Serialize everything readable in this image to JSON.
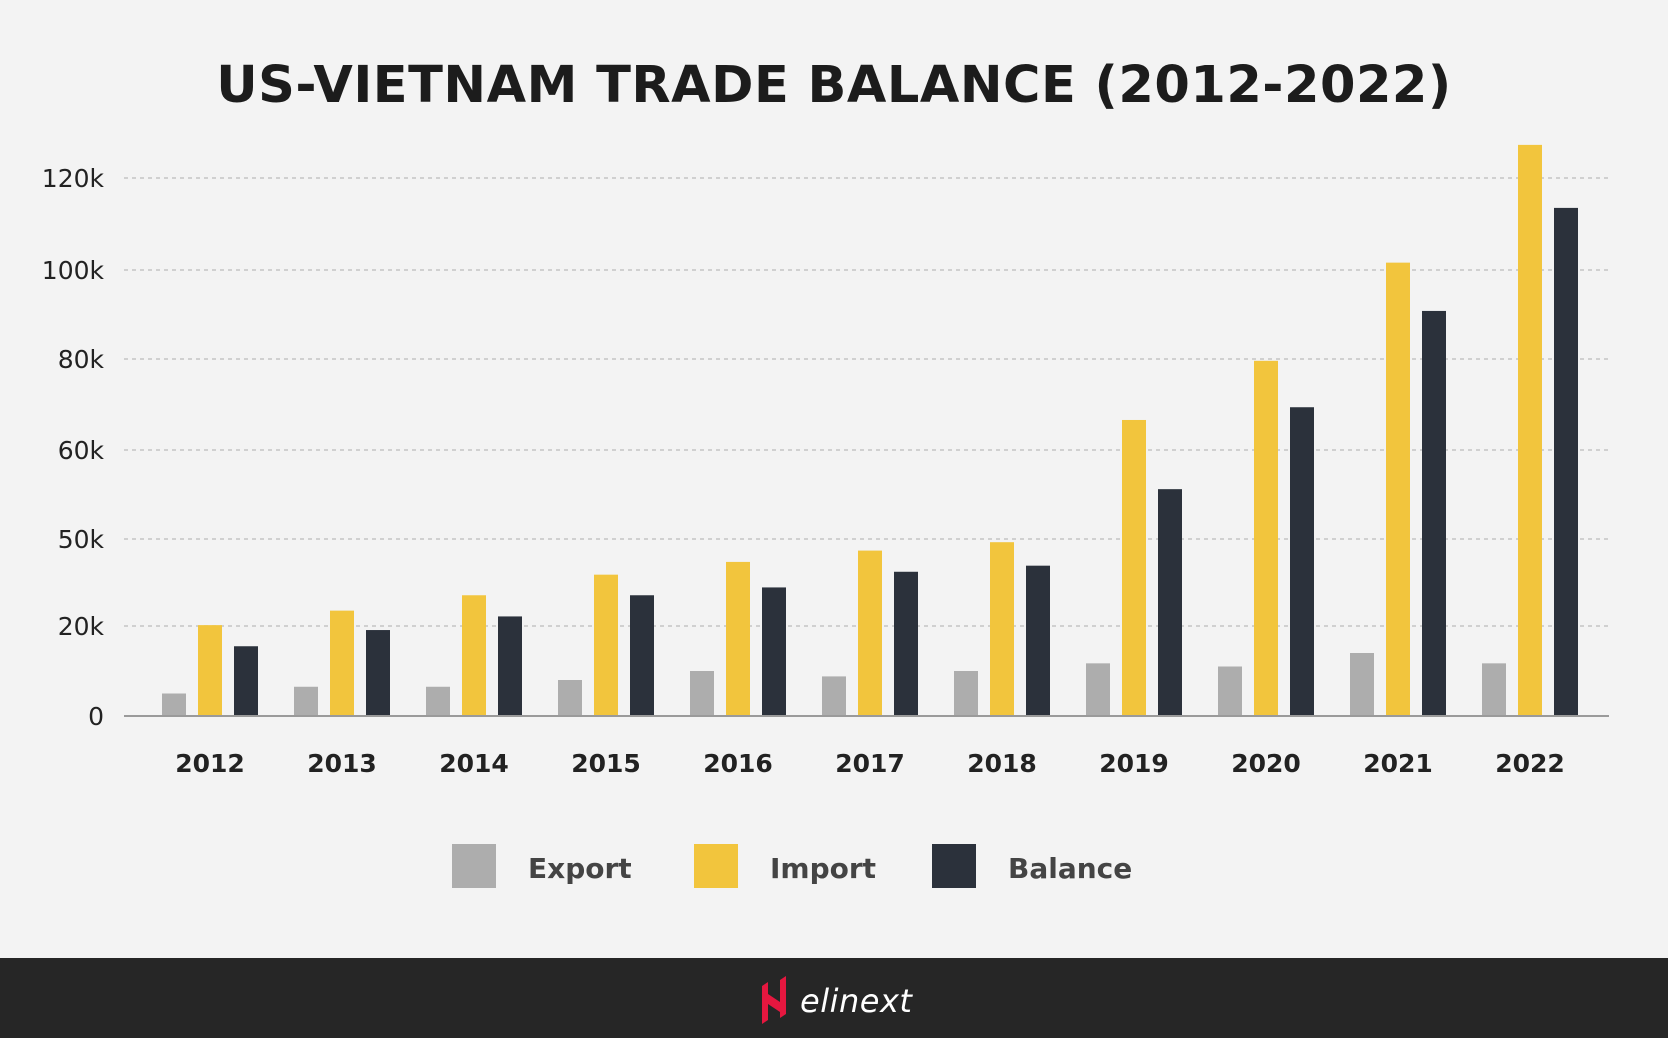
{
  "chart_data": {
    "type": "bar",
    "title": "US-VIETNAM TRADE BALANCE (2012-2022)",
    "xlabel": "",
    "ylabel": "",
    "categories": [
      "2012",
      "2013",
      "2014",
      "2015",
      "2016",
      "2017",
      "2018",
      "2019",
      "2020",
      "2021",
      "2022"
    ],
    "y_ticks": [
      {
        "value": 0,
        "label": "0"
      },
      {
        "value": 20000,
        "label": "20k"
      },
      {
        "value": 50000,
        "label": "50k"
      },
      {
        "value": 60000,
        "label": "60k"
      },
      {
        "value": 80000,
        "label": "80k"
      },
      {
        "value": 100000,
        "label": "100k"
      },
      {
        "value": 120000,
        "label": "120k"
      }
    ],
    "series": [
      {
        "name": "Export",
        "color": "#adadad",
        "values": [
          5000,
          6500,
          6500,
          8000,
          10000,
          8800,
          10000,
          11700,
          11000,
          14000,
          11700
        ]
      },
      {
        "name": "Import",
        "color": "#f2c53d",
        "values": [
          20300,
          25300,
          30600,
          37700,
          42100,
          46000,
          48900,
          66600,
          79600,
          101600,
          127200
        ]
      },
      {
        "name": "Balance",
        "color": "#2b313b",
        "values": [
          15500,
          19100,
          23300,
          30600,
          33300,
          38700,
          40800,
          55600,
          69400,
          90800,
          113500
        ]
      }
    ],
    "grid": true,
    "legend_position": "bottom"
  },
  "footer": {
    "logo_text": "elinext"
  }
}
